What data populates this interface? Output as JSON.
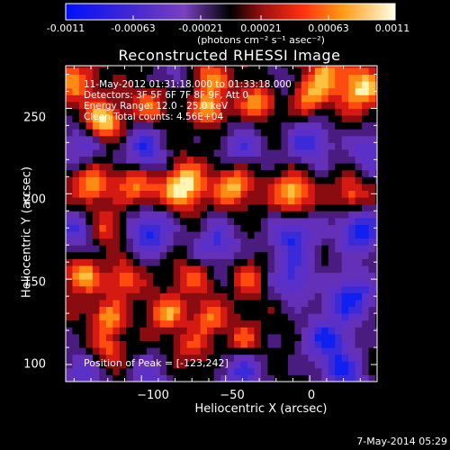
{
  "colorbar": {
    "ticks": [
      "-0.0011",
      "-0.00063",
      "-0.00021",
      "0.00021",
      "0.00063",
      "0.0011"
    ],
    "units": "(photons cm⁻² s⁻¹ asec⁻²)"
  },
  "title": "Reconstructed RHESSI Image",
  "info": {
    "time": "11-May-2012 01:31:18.000 to 01:33:18.000",
    "detectors": "Detectors: 3F 5F 6F 7F 8F 9F, Att 0",
    "energy": "Energy Range: 12.0 - 25.0 keV",
    "clean": "Clean      Total counts: 4.56E+04"
  },
  "peak": "Position of Peak = [-123,242]",
  "axes": {
    "xlabel": "Heliocentric X (arcsec)",
    "ylabel": "Heliocentric Y (arcsec)",
    "x_ticks": [
      "−100",
      "−50",
      "0"
    ],
    "y_ticks": [
      "100",
      "150",
      "200",
      "250"
    ],
    "x_range": [
      -145,
      40
    ],
    "y_range": [
      90,
      275
    ]
  },
  "footer": "7-May-2014 05:29",
  "colors": {
    "background": "#000000",
    "negative": "#1a2bd8",
    "mid_negative": "#5a2ab8",
    "zero": "#000000",
    "positive_low": "#c0141a",
    "positive_mid": "#ff8a10",
    "positive_high": "#ffffd0"
  },
  "peak_position": {
    "x": -123,
    "y": 242
  }
}
